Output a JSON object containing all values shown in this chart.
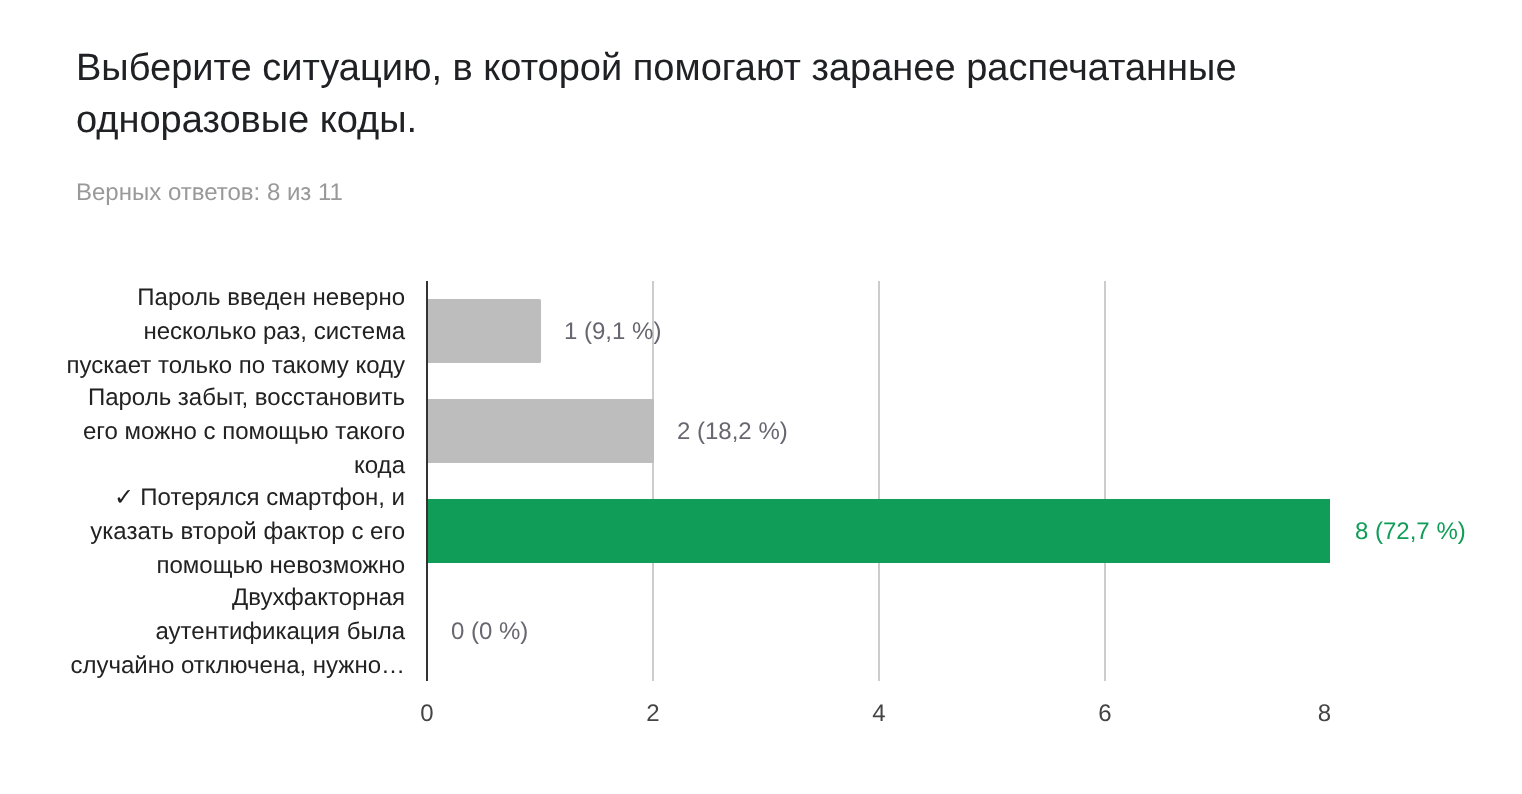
{
  "chart_data": {
    "type": "bar",
    "orientation": "horizontal",
    "title": "Выберите ситуацию, в которой помогают заранее распечатанные одноразовые коды.",
    "subtitle": "Верных ответов: 8 из 11",
    "categories": [
      "Пароль введен неверно\nнесколько раз, система\nпускает только по такому коду",
      "Пароль забыт, восстановить\nего можно с помощью такого\nкода",
      "✓ Потерялся смартфон, и\nуказать второй фактор с его\nпомощью невозможно",
      "Двухфакторная\nаутентификация была\nслучайно отключена, нужно…"
    ],
    "values": [
      1,
      2,
      8,
      0
    ],
    "colors": [
      "#bdbdbd",
      "#bdbdbd",
      "#0f9d58",
      "#bdbdbd"
    ],
    "value_labels": [
      "1 (9,1 %)",
      "2 (18,2 %)",
      "8 (72,7 %)",
      "0 (0 %)"
    ],
    "xlim": [
      0,
      8
    ],
    "xticks": [
      0,
      2,
      4,
      6,
      8
    ],
    "grid": "x"
  }
}
